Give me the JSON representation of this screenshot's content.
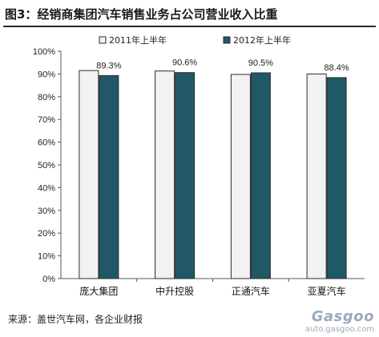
{
  "title": "图3：经销商集团汽车销售业务占公司营业收入比重",
  "source": "来源：盖世汽车网，各企业财报",
  "watermark": {
    "logo": "Gasgoo",
    "url": "auto.gasgoo.com"
  },
  "colors": {
    "series_2011": "#f2f2f2",
    "series_2012": "#215868",
    "outline": "#2b2b2b"
  },
  "chart_data": {
    "type": "bar",
    "categories": [
      "庞大集团",
      "中升控股",
      "正通汽车",
      "亚夏汽车"
    ],
    "series": [
      {
        "name": "2011年上半年",
        "values": [
          91.5,
          91.3,
          89.8,
          90.0
        ]
      },
      {
        "name": "2012年上半年",
        "values": [
          89.3,
          90.6,
          90.5,
          88.4
        ]
      }
    ],
    "data_labels": [
      "89.3%",
      "90.6%",
      "90.5%",
      "88.4%"
    ],
    "ylim": [
      0,
      100
    ],
    "yticks": [
      "0%",
      "10%",
      "20%",
      "30%",
      "40%",
      "50%",
      "60%",
      "70%",
      "80%",
      "90%",
      "100%"
    ],
    "legend": "top",
    "grid": false
  }
}
